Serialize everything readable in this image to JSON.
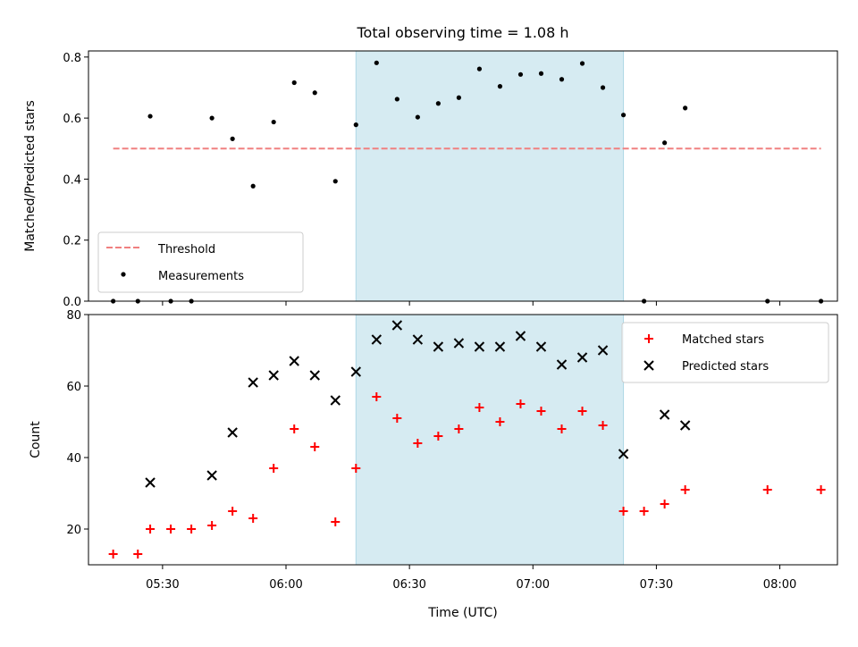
{
  "chart_data": [
    {
      "type": "scatter",
      "title": "Total observing time = 1.08 h",
      "xlabel": "",
      "ylabel": "Matched/Predicted stars",
      "ylim": [
        0,
        0.82
      ],
      "yticks": [
        0.0,
        0.2,
        0.4,
        0.6,
        0.8
      ],
      "ytick_labels": [
        "0.0",
        "0.2",
        "0.4",
        "0.6",
        "0.8"
      ],
      "xlim": [
        "05:12",
        "08:14"
      ],
      "highlight_span": [
        "06:17",
        "07:22"
      ],
      "highlight_color": "#add8e6",
      "legend": {
        "placement": "lower-left",
        "entries": [
          {
            "label": "Threshold",
            "style": "dashed-line",
            "color": "#f08080"
          },
          {
            "label": "Measurements",
            "style": "dot",
            "color": "#000000"
          }
        ]
      },
      "threshold": {
        "value": 0.5,
        "x_start": "05:18",
        "x_end": "08:10",
        "color": "#f08080"
      },
      "series": [
        {
          "name": "Measurements",
          "color": "#000000",
          "marker": "dot",
          "x": [
            "05:18",
            "05:24",
            "05:27",
            "05:32",
            "05:37",
            "05:42",
            "05:47",
            "05:52",
            "05:57",
            "06:02",
            "06:07",
            "06:12",
            "06:17",
            "06:22",
            "06:27",
            "06:32",
            "06:37",
            "06:42",
            "06:47",
            "06:52",
            "06:57",
            "07:02",
            "07:07",
            "07:12",
            "07:17",
            "07:22",
            "07:27",
            "07:32",
            "07:37",
            "07:57",
            "08:10"
          ],
          "y": [
            0.0,
            0.0,
            0.606,
            0.0,
            0.0,
            0.6,
            0.532,
            0.377,
            0.587,
            0.716,
            0.683,
            0.393,
            0.578,
            0.781,
            0.662,
            0.603,
            0.648,
            0.667,
            0.761,
            0.704,
            0.743,
            0.746,
            0.727,
            0.779,
            0.7,
            0.61,
            0.0,
            0.519,
            0.633,
            0.0,
            0.0
          ]
        }
      ]
    },
    {
      "type": "scatter",
      "title": "",
      "xlabel": "Time (UTC)",
      "ylabel": "Count",
      "ylim": [
        10,
        80
      ],
      "yticks": [
        20,
        40,
        60,
        80
      ],
      "ytick_labels": [
        "20",
        "40",
        "60",
        "80"
      ],
      "xlim": [
        "05:12",
        "08:14"
      ],
      "xticks": [
        "05:30",
        "06:00",
        "06:30",
        "07:00",
        "07:30",
        "08:00"
      ],
      "highlight_span": [
        "06:17",
        "07:22"
      ],
      "highlight_color": "#add8e6",
      "legend": {
        "placement": "upper-right",
        "entries": [
          {
            "label": "Matched stars",
            "style": "plus",
            "color": "#ff0000"
          },
          {
            "label": "Predicted stars",
            "style": "x",
            "color": "#000000"
          }
        ]
      },
      "series": [
        {
          "name": "Matched stars",
          "color": "#ff0000",
          "marker": "plus",
          "x": [
            "05:18",
            "05:24",
            "05:27",
            "05:32",
            "05:37",
            "05:42",
            "05:47",
            "05:52",
            "05:57",
            "06:02",
            "06:07",
            "06:12",
            "06:17",
            "06:22",
            "06:27",
            "06:32",
            "06:37",
            "06:42",
            "06:47",
            "06:52",
            "06:57",
            "07:02",
            "07:07",
            "07:12",
            "07:17",
            "07:22",
            "07:27",
            "07:32",
            "07:37",
            "07:57",
            "08:10"
          ],
          "y": [
            13,
            13,
            20,
            20,
            20,
            21,
            25,
            23,
            37,
            48,
            43,
            22,
            37,
            57,
            51,
            44,
            46,
            48,
            54,
            50,
            55,
            53,
            48,
            53,
            49,
            25,
            25,
            27,
            31,
            31,
            31
          ]
        },
        {
          "name": "Predicted stars",
          "color": "#000000",
          "marker": "x",
          "x": [
            "05:27",
            "05:42",
            "05:47",
            "05:52",
            "05:57",
            "06:02",
            "06:07",
            "06:12",
            "06:17",
            "06:22",
            "06:27",
            "06:32",
            "06:37",
            "06:42",
            "06:47",
            "06:52",
            "06:57",
            "07:02",
            "07:07",
            "07:12",
            "07:17",
            "07:22",
            "07:32",
            "07:37"
          ],
          "y": [
            33,
            35,
            47,
            61,
            63,
            67,
            63,
            56,
            64,
            73,
            77,
            73,
            71,
            72,
            71,
            71,
            74,
            71,
            66,
            68,
            70,
            41,
            52,
            49
          ]
        }
      ]
    }
  ]
}
